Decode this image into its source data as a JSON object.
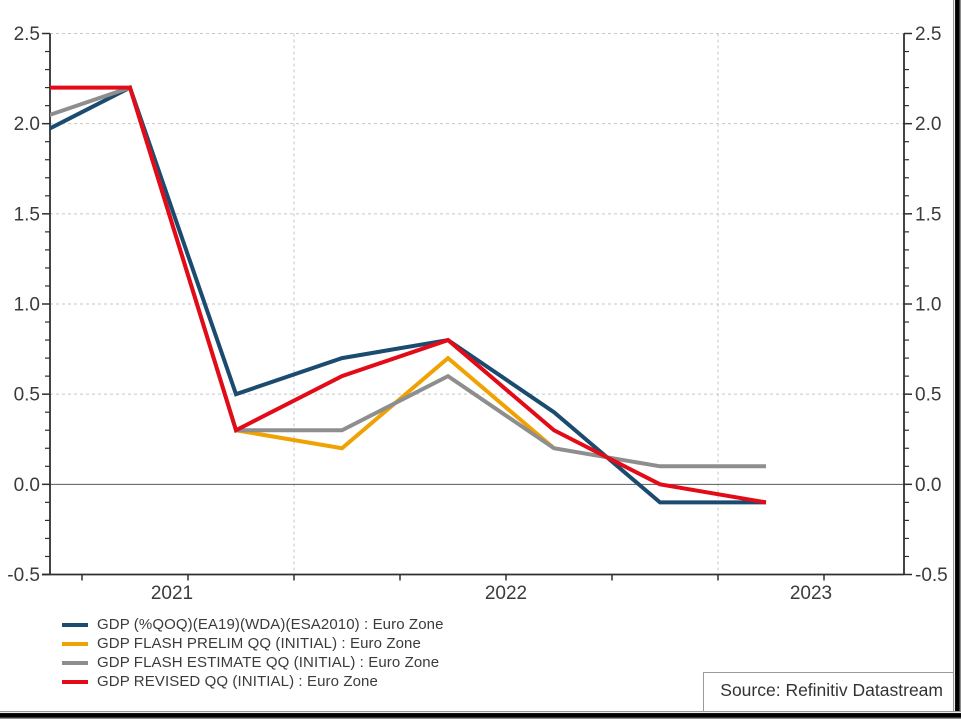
{
  "chart_data": {
    "type": "line",
    "title": "",
    "xlabel": "",
    "ylabel": "",
    "x_unit": "quarter",
    "x_labels_years": [
      "2021",
      "2022",
      "2023"
    ],
    "y_tick_labels": [
      "2.5",
      "2.0",
      "1.5",
      "1.0",
      "0.5",
      "0.0",
      "-0.5"
    ],
    "y_ticks": [
      2.5,
      2.0,
      1.5,
      1.0,
      0.5,
      0.0,
      -0.5
    ],
    "ylim": [
      -0.5,
      2.5
    ],
    "y_minor_step": 0.1,
    "grid": {
      "horizontal_dashed": [
        2.5,
        2.0,
        1.5,
        1.0,
        0.5
      ],
      "zero_line": 0.0,
      "vertical_dashed_year_starts": [
        "2022",
        "2023"
      ]
    },
    "legend_position": "bottom-left",
    "axis_sides": [
      "left",
      "right"
    ],
    "series": [
      {
        "name": "GDP (%QOQ)(EA19)(WDA)(ESA2010) : Euro Zone",
        "color": "#1C4B70",
        "values": [
          1.9,
          2.2,
          0.5,
          0.7,
          0.8,
          0.4,
          -0.1,
          -0.1
        ]
      },
      {
        "name": "GDP FLASH PRELIM QQ (INITIAL) : Euro Zone",
        "color": "#F0A202",
        "values": [
          null,
          null,
          0.3,
          0.2,
          0.7,
          0.2,
          null,
          null
        ]
      },
      {
        "name": "GDP FLASH ESTIMATE QQ (INITIAL) : Euro Zone",
        "color": "#8E8E8E",
        "values": [
          2.0,
          2.2,
          0.3,
          0.3,
          0.6,
          0.2,
          0.1,
          0.1
        ]
      },
      {
        "name": "GDP REVISED QQ (INITIAL) : Euro Zone",
        "color": "#E30B17",
        "values": [
          2.2,
          2.2,
          0.3,
          0.6,
          0.8,
          0.3,
          0.0,
          -0.1
        ]
      }
    ],
    "source": "Source: Refinitiv Datastream",
    "colors": {
      "axis": "#2F2F2F",
      "grid": "#C6C6C6",
      "zero_line": "#5A5A5A",
      "text": "#3B3B3B"
    }
  }
}
